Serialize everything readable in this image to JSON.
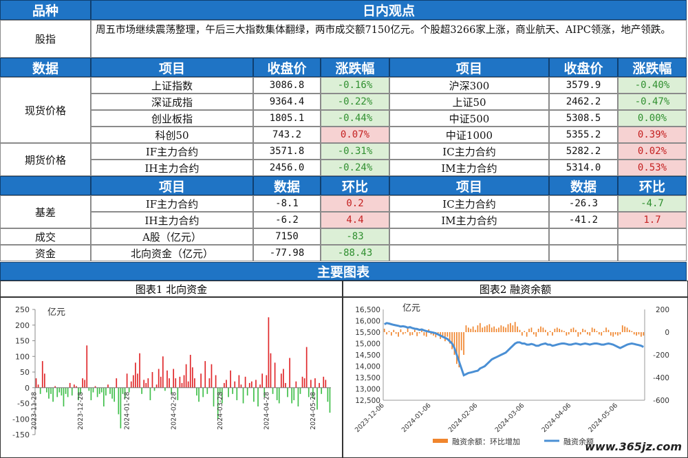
{
  "header": {
    "col1": "品种",
    "col2": "日内观点"
  },
  "index_row": {
    "label": "股指",
    "text": "周五市场继续震荡整理，午后三大指数集体翻绿，两市成交额7150亿元。个股超3266家上涨，商业航天、AIPC领涨，地产领跌。"
  },
  "table1": {
    "headers": [
      "数据",
      "项目",
      "收盘价",
      "涨跌幅",
      "项目",
      "收盘价",
      "涨跌幅"
    ],
    "group_spot": "现货价格",
    "group_futures": "期货价格",
    "rows": [
      {
        "item": "上证指数",
        "close": "3086.8",
        "chg": "-0.16%",
        "item2": "沪深300",
        "close2": "3579.9",
        "chg2": "-0.40%"
      },
      {
        "item": "深证成指",
        "close": "9364.4",
        "chg": "-0.22%",
        "item2": "上证50",
        "close2": "2462.2",
        "chg2": "-0.47%"
      },
      {
        "item": "创业板指",
        "close": "1805.1",
        "chg": "-0.44%",
        "item2": "中证500",
        "close2": "5308.5",
        "chg2": "0.00%"
      },
      {
        "item": "科创50",
        "close": "743.2",
        "chg": "0.07%",
        "item2": "中证1000",
        "close2": "5355.2",
        "chg2": "0.39%"
      },
      {
        "item": "IF主力合约",
        "close": "3571.8",
        "chg": "-0.31%",
        "item2": "IC主力合约",
        "close2": "5282.2",
        "chg2": "0.02%"
      },
      {
        "item": "IH主力合约",
        "close": "2456.0",
        "chg": "-0.24%",
        "item2": "IM主力合约",
        "close2": "5314.0",
        "chg2": "0.53%"
      }
    ]
  },
  "table2": {
    "headers": [
      "项目",
      "数据",
      "环比",
      "项目",
      "数据",
      "环比"
    ],
    "basis_label": "基差",
    "rows": [
      {
        "item": "IF主力合约",
        "value": "-8.1",
        "qoq": "0.2",
        "item2": "IC主力合约",
        "value2": "-26.3",
        "qoq2": "-4.7"
      },
      {
        "item": "IH主力合约",
        "value": "-6.2",
        "qoq": "4.4",
        "item2": "IM主力合约",
        "value2": "-41.2",
        "qoq2": "1.7"
      }
    ],
    "turnover": {
      "label": "成交",
      "item": "A股（亿元）",
      "value": "7150",
      "qoq": "-83"
    },
    "funds": {
      "label": "资金",
      "item": "北向资金（亿元）",
      "value": "-77.98",
      "qoq": "-88.43"
    }
  },
  "charts_header": "主要图表",
  "colors": {
    "header_blue": "#1f74c5",
    "up_red": "#e0272a",
    "down_green": "#3fbf4a",
    "line_blue": "#4a8fd4",
    "bar_orange": "#f0852d"
  },
  "watermark": "www.365jz.com",
  "chart_data": [
    {
      "type": "bar",
      "title": "图表1  北向资金",
      "ylabel": "亿元",
      "ylim": [
        -150,
        250
      ],
      "yticks": [
        -150,
        -100,
        -50,
        0,
        50,
        100,
        150,
        200,
        250
      ],
      "xtick_labels": [
        "2023-11-28",
        "2023-12-28",
        "2024-01-28",
        "2024-02-28",
        "2024-03-28",
        "2024-04-28",
        "2024-05-28"
      ],
      "xtick_positions": [
        0,
        22,
        44,
        66,
        88,
        110,
        132
      ],
      "values": [
        30,
        10,
        -20,
        85,
        45,
        -15,
        -35,
        -20,
        -45,
        5,
        -30,
        -15,
        -25,
        -60,
        -20,
        -30,
        15,
        -25,
        10,
        5,
        -40,
        -20,
        30,
        25,
        135,
        -10,
        -40,
        -15,
        5,
        -30,
        -20,
        -15,
        -60,
        -25,
        10,
        -20,
        -35,
        -45,
        30,
        -85,
        -130,
        -20,
        -35,
        45,
        -15,
        20,
        40,
        80,
        45,
        110,
        -20,
        25,
        15,
        30,
        -40,
        50,
        -10,
        10,
        60,
        35,
        100,
        -10,
        55,
        30,
        -20,
        60,
        30,
        -40,
        35,
        15,
        40,
        75,
        20,
        105,
        65,
        30,
        -25,
        -45,
        45,
        -30,
        85,
        -20,
        30,
        75,
        -60,
        40,
        -100,
        -20,
        -50,
        15,
        25,
        -30,
        55,
        -20,
        20,
        -40,
        40,
        10,
        -50,
        35,
        -25,
        15,
        20,
        -45,
        25,
        -60,
        10,
        45,
        -30,
        40,
        225,
        110,
        -20,
        80,
        -40,
        -50,
        45,
        60,
        15,
        -30,
        95,
        -50,
        -40,
        20,
        -60,
        -20,
        35,
        30,
        130,
        -30,
        25,
        -35,
        30,
        -70,
        15,
        -20,
        35,
        25,
        -45,
        -80
      ]
    },
    {
      "type": "line",
      "title": "图表2  融资余额",
      "ylabel": "亿元",
      "ylim": [
        12500,
        16500
      ],
      "yticks_left": [
        12500,
        13000,
        13500,
        14000,
        14500,
        15000,
        15500,
        16000,
        16500
      ],
      "ylim_right": [
        -600,
        200
      ],
      "yticks_right": [
        -600,
        -400,
        -200,
        0,
        200
      ],
      "xtick_labels": [
        "2023-12-06",
        "2024-01-06",
        "2024-02-06",
        "2024-03-06",
        "2024-04-06",
        "2024-05-06"
      ],
      "xtick_positions": [
        0,
        20,
        40,
        60,
        80,
        100
      ],
      "series": [
        {
          "name": "融资余额",
          "axis": "left",
          "type": "line",
          "values": [
            15850,
            15900,
            15880,
            15850,
            15820,
            15800,
            15780,
            15750,
            15760,
            15740,
            15700,
            15720,
            15680,
            15650,
            15640,
            15600,
            15620,
            15580,
            15550,
            15520,
            15500,
            15480,
            15450,
            15400,
            15350,
            15300,
            15250,
            15200,
            15100,
            15000,
            14800,
            14500,
            14200,
            13900,
            13600,
            13650,
            13700,
            13720,
            13750,
            13780,
            13800,
            13900,
            13950,
            14000,
            14100,
            14200,
            14300,
            14350,
            14400,
            14450,
            14500,
            14550,
            14600,
            14700,
            14800,
            14900,
            15000,
            15050,
            15050,
            15000,
            15000,
            14950,
            14950,
            14980,
            14950,
            14900,
            14900,
            14950,
            14980,
            15000,
            14950,
            14950,
            14900,
            14920,
            14950,
            14980,
            15000,
            15000,
            14980,
            14950,
            14950,
            14980,
            15000,
            14980,
            14950,
            14980,
            15000,
            14980,
            14950,
            14980,
            15000,
            15000,
            14980,
            14950,
            14950,
            14980,
            15000,
            14980,
            14950,
            14900,
            14850,
            14800,
            14850,
            14900,
            14950,
            14980,
            15000,
            14980,
            14950,
            14930,
            14900,
            14850
          ]
        },
        {
          "name": "融资余额：环比增加",
          "axis": "right",
          "type": "bar",
          "values": [
            30,
            -20,
            10,
            -30,
            20,
            -15,
            -40,
            25,
            -20,
            -10,
            40,
            -30,
            -25,
            20,
            -35,
            -10,
            15,
            -30,
            -40,
            25,
            -20,
            -30,
            -45,
            -20,
            -60,
            -50,
            -80,
            -40,
            -100,
            -150,
            -200,
            -280,
            -310,
            -160,
            -200,
            60,
            40,
            30,
            50,
            20,
            60,
            80,
            40,
            50,
            60,
            70,
            40,
            50,
            30,
            40,
            60,
            50,
            40,
            70,
            80,
            60,
            90,
            50,
            20,
            -30,
            10,
            -40,
            30,
            40,
            -20,
            -40,
            30,
            50,
            40,
            20,
            -30,
            10,
            -30,
            30,
            40,
            30,
            20,
            10,
            -30,
            -20,
            30,
            40,
            20,
            -40,
            -20,
            30,
            20,
            -20,
            -30,
            40,
            30,
            10,
            -20,
            -30,
            10,
            40,
            20,
            -30,
            -40,
            -20,
            -30,
            -20,
            60,
            50,
            40,
            20,
            10,
            -20,
            -30,
            -20,
            -40,
            -30
          ]
        }
      ]
    }
  ]
}
